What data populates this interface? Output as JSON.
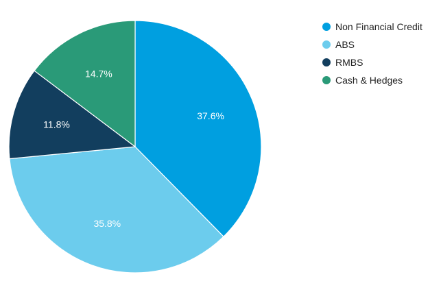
{
  "chart_data": {
    "type": "pie",
    "title": "",
    "categories": [
      "Non Financial Credit",
      "ABS",
      "RMBS",
      "Cash & Hedges"
    ],
    "values": [
      37.6,
      35.8,
      11.8,
      14.7
    ],
    "data_labels": [
      "37.6%",
      "35.8%",
      "11.8%",
      "14.7%"
    ],
    "colors": [
      "#009fe0",
      "#6ccced",
      "#123e5e",
      "#2a9a78"
    ],
    "legend_position": "top-right",
    "start_angle": "12 o'clock",
    "direction": "clockwise"
  }
}
